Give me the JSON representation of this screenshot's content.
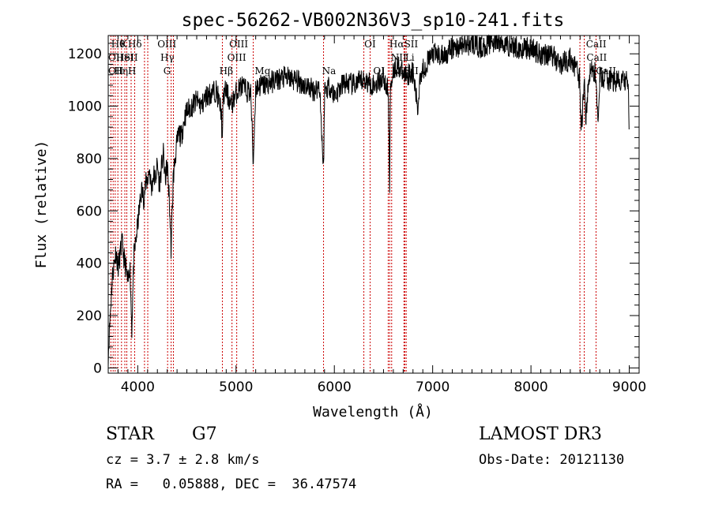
{
  "chart_data": {
    "type": "line",
    "title": "spec-56262-VB002N36V3_sp10-241.fits",
    "xlabel": "Wavelength (Å)",
    "ylabel": "Flux (relative)",
    "xlim": [
      3700,
      9100
    ],
    "ylim": [
      -20,
      1270
    ],
    "x_ticks": [
      4000,
      5000,
      6000,
      7000,
      8000,
      9000
    ],
    "x_tick_labels": [
      "4000",
      "5000",
      "6000",
      "7000",
      "8000",
      "9000"
    ],
    "y_ticks": [
      0,
      200,
      400,
      600,
      800,
      1000,
      1200
    ],
    "y_tick_labels": [
      "0",
      "200",
      "400",
      "600",
      "800",
      "1000",
      "1200"
    ],
    "grid": false,
    "series": [
      {
        "x": [
          3700,
          3720,
          3740,
          3760,
          3780,
          3800,
          3820,
          3840,
          3860,
          3880,
          3900,
          3920,
          3940,
          3960,
          3980,
          4000,
          4020,
          4040,
          4060,
          4080,
          4100,
          4120,
          4140,
          4160,
          4180,
          4200,
          4220,
          4240,
          4260,
          4280,
          4300,
          4320,
          4340,
          4360,
          4380,
          4400,
          4420,
          4440,
          4460,
          4480,
          4500,
          4550,
          4600,
          4650,
          4700,
          4750,
          4800,
          4850,
          4861,
          4870,
          4900,
          4950,
          5000,
          5050,
          5100,
          5150,
          5175,
          5200,
          5250,
          5300,
          5400,
          5500,
          5600,
          5700,
          5800,
          5850,
          5890,
          5900,
          5950,
          6000,
          6100,
          6200,
          6300,
          6400,
          6500,
          6550,
          6563,
          6570,
          6600,
          6650,
          6700,
          6800,
          6850,
          6870,
          6900,
          7000,
          7100,
          7200,
          7300,
          7400,
          7500,
          7600,
          7700,
          7800,
          7900,
          8000,
          8100,
          8200,
          8300,
          8400,
          8450,
          8498,
          8510,
          8542,
          8560,
          8600,
          8662,
          8680,
          8700,
          8800,
          8900,
          8950,
          8990,
          9000
        ],
        "y": [
          50,
          200,
          340,
          400,
          450,
          380,
          430,
          480,
          420,
          380,
          320,
          400,
          150,
          420,
          480,
          550,
          620,
          680,
          650,
          700,
          720,
          760,
          680,
          740,
          720,
          780,
          700,
          760,
          820,
          720,
          780,
          650,
          450,
          720,
          800,
          860,
          900,
          880,
          920,
          960,
          980,
          1000,
          1020,
          1000,
          1040,
          1050,
          1060,
          980,
          850,
          1040,
          1060,
          1000,
          1050,
          1080,
          1060,
          1050,
          780,
          1070,
          1080,
          1080,
          1100,
          1110,
          1100,
          1080,
          1060,
          1080,
          750,
          1060,
          1080,
          1040,
          1090,
          1080,
          1100,
          1080,
          1110,
          1050,
          640,
          1080,
          1140,
          1160,
          1120,
          1130,
          980,
          1120,
          1140,
          1200,
          1190,
          1220,
          1230,
          1240,
          1220,
          1250,
          1240,
          1230,
          1220,
          1220,
          1200,
          1200,
          1160,
          1180,
          1150,
          1100,
          900,
          1080,
          960,
          1140,
          1120,
          950,
          1110,
          1100,
          1090,
          1100,
          1080,
          860
        ]
      }
    ],
    "line_labels": [
      {
        "x": 3730,
        "row": 0,
        "text": "Hθ"
      },
      {
        "x": 3820,
        "row": 0,
        "text": "K"
      },
      {
        "x": 3900,
        "row": 0,
        "text": "Hδ"
      },
      {
        "x": 4200,
        "row": 0,
        "text": "OIII"
      },
      {
        "x": 4930,
        "row": 0,
        "text": "OIII"
      },
      {
        "x": 6305,
        "row": 0,
        "text": "OI"
      },
      {
        "x": 6560,
        "row": 0,
        "text": "Hα"
      },
      {
        "x": 6710,
        "row": 0,
        "text": "SII"
      },
      {
        "x": 8560,
        "row": 0,
        "text": "CaII"
      },
      {
        "x": 3700,
        "row": 1,
        "text": "OII"
      },
      {
        "x": 3780,
        "row": 1,
        "text": "HeI"
      },
      {
        "x": 3860,
        "row": 1,
        "text": "SII"
      },
      {
        "x": 4230,
        "row": 1,
        "text": "Hγ"
      },
      {
        "x": 4910,
        "row": 1,
        "text": "OIII"
      },
      {
        "x": 6575,
        "row": 1,
        "text": "NII"
      },
      {
        "x": 6720,
        "row": 1,
        "text": "Li"
      },
      {
        "x": 8565,
        "row": 1,
        "text": "CaII"
      },
      {
        "x": 3700,
        "row": 2,
        "text": "OII"
      },
      {
        "x": 3760,
        "row": 2,
        "text": "Hη"
      },
      {
        "x": 3900,
        "row": 2,
        "text": "H"
      },
      {
        "x": 4260,
        "row": 2,
        "text": "G"
      },
      {
        "x": 4830,
        "row": 2,
        "text": "Hβ"
      },
      {
        "x": 5190,
        "row": 2,
        "text": "Mg"
      },
      {
        "x": 5875,
        "row": 2,
        "text": "Na"
      },
      {
        "x": 6395,
        "row": 2,
        "text": "OI"
      },
      {
        "x": 6585,
        "row": 2,
        "text": "NII"
      },
      {
        "x": 6715,
        "row": 2,
        "text": "SII"
      },
      {
        "x": 8660,
        "row": 2,
        "text": "CaII"
      }
    ],
    "marker_lines": [
      3727,
      3750,
      3771,
      3798,
      3835,
      3869,
      3889,
      3933,
      3969,
      4069,
      4102,
      4304,
      4340,
      4363,
      4861,
      4959,
      5007,
      5175,
      5890,
      6300,
      6364,
      6548,
      6563,
      6583,
      6708,
      6717,
      6731,
      8498,
      8542,
      8662
    ]
  },
  "info": {
    "object_class": "STAR",
    "subclass": "G7",
    "survey": "LAMOST DR3",
    "redshift_text": "cz = 3.7 ± 2.8 km/s",
    "obs_date_text": "Obs-Date: 20121130",
    "coords_text": "RA =   0.05888, DEC =  36.47574"
  },
  "colors": {
    "spectrum": "#000000",
    "marker": "#cc0000",
    "background": "#ffffff"
  }
}
